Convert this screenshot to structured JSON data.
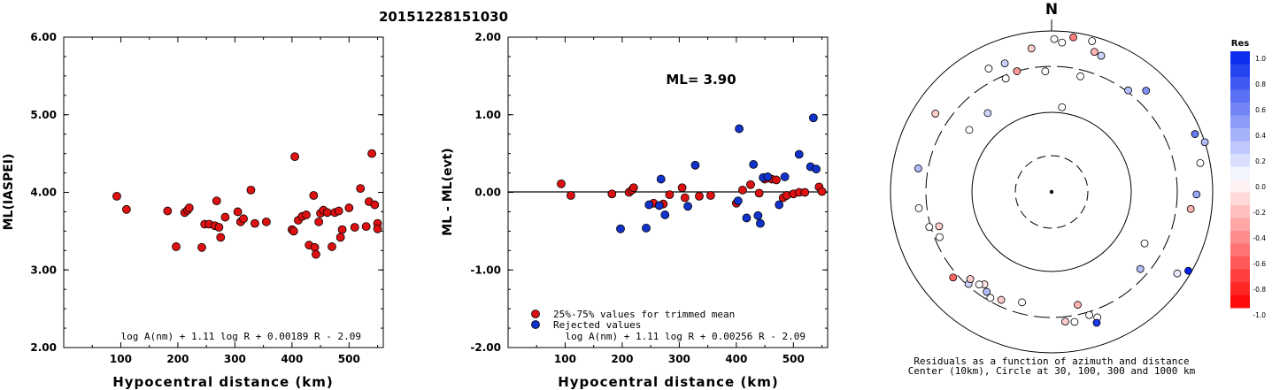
{
  "page_title": "20151228151030",
  "chart_data": [
    {
      "type": "scatter",
      "panel": "left",
      "ylabel": "ML(IASPEI)",
      "xlabel": "Hypocentral distance (km)",
      "xlim": [
        0,
        560
      ],
      "ylim": [
        2.0,
        6.0
      ],
      "xticks": [
        "100",
        "200",
        "300",
        "400",
        "500"
      ],
      "yticks": [
        "2.00",
        "3.00",
        "4.00",
        "5.00",
        "6.00"
      ],
      "formula": "log A(nm) + 1.11 log R + 0.00189 R - 2.09",
      "series": [
        {
          "color": "#dd1111",
          "x": [
            93,
            110,
            182,
            197,
            212,
            217,
            220,
            242,
            247,
            255,
            265,
            268,
            272,
            275,
            283,
            305,
            310,
            315,
            328,
            335,
            355,
            400,
            403,
            405,
            411,
            418,
            425,
            430,
            438,
            440,
            442,
            447,
            450,
            455,
            462,
            470,
            475,
            482,
            485,
            488,
            500,
            510,
            520,
            530,
            535,
            540,
            545,
            550,
            550
          ],
          "y": [
            3.95,
            3.78,
            3.76,
            3.3,
            3.74,
            3.77,
            3.8,
            3.29,
            3.59,
            3.59,
            3.57,
            3.89,
            3.55,
            3.42,
            3.68,
            3.75,
            3.62,
            3.66,
            4.03,
            3.6,
            3.62,
            3.52,
            3.5,
            4.46,
            3.64,
            3.69,
            3.71,
            3.32,
            3.96,
            3.29,
            3.2,
            3.62,
            3.73,
            3.77,
            3.74,
            3.3,
            3.74,
            3.76,
            3.42,
            3.52,
            3.8,
            3.55,
            4.05,
            3.56,
            3.88,
            4.5,
            3.84,
            3.6,
            3.53
          ]
        }
      ]
    },
    {
      "type": "scatter",
      "panel": "middle",
      "ylabel": "ML - ML(evt)",
      "xlabel": "Hypocentral distance (km)",
      "xlim": [
        0,
        560
      ],
      "ylim": [
        -2.0,
        2.0
      ],
      "xticks": [
        "100",
        "200",
        "300",
        "400",
        "500"
      ],
      "yticks": [
        "-2.00",
        "-1.00",
        "0.00",
        "1.00",
        "2.00"
      ],
      "annotation": "ML= 3.90",
      "legend": [
        "25%-75% values for trimmed mean",
        "Rejected values"
      ],
      "formula": "log A(nm) + 1.11 log R + 0.00256 R - 2.09",
      "series": [
        {
          "name": "25%-75% values for trimmed mean",
          "color": "#dd1111",
          "x": [
            93,
            110,
            182,
            212,
            217,
            220,
            255,
            272,
            283,
            305,
            310,
            335,
            355,
            400,
            411,
            425,
            440,
            450,
            462,
            470,
            482,
            488,
            500,
            510,
            520,
            545,
            550
          ],
          "y": [
            0.11,
            -0.04,
            -0.02,
            0.0,
            0.03,
            0.06,
            -0.14,
            -0.15,
            -0.03,
            0.06,
            -0.07,
            -0.05,
            -0.04,
            -0.14,
            0.03,
            0.1,
            -0.01,
            0.17,
            0.17,
            0.16,
            -0.07,
            -0.04,
            -0.02,
            0.0,
            0.0,
            0.07,
            0.01
          ]
        },
        {
          "name": "Rejected values",
          "color": "#1133cc",
          "x": [
            197,
            242,
            247,
            265,
            268,
            275,
            315,
            328,
            403,
            405,
            418,
            430,
            438,
            442,
            447,
            455,
            475,
            485,
            510,
            530,
            535,
            540
          ],
          "y": [
            -0.47,
            -0.46,
            -0.16,
            -0.17,
            0.17,
            -0.29,
            -0.18,
            0.35,
            -0.11,
            0.82,
            -0.33,
            0.36,
            -0.3,
            -0.4,
            0.19,
            0.2,
            -0.16,
            0.2,
            0.49,
            0.33,
            0.96,
            0.3
          ]
        }
      ]
    }
  ],
  "polar": {
    "north_label": "N",
    "caption_line1": "Residuals as a function of azimuth and distance",
    "caption_line2": "Center (10km), Circle at 30, 100, 300 and 1000 km",
    "points": [
      {
        "az": 1,
        "r": 0.95,
        "res": 0.0
      },
      {
        "az": 4,
        "r": 0.93,
        "res": 0.0
      },
      {
        "az": 8,
        "r": 0.97,
        "res": -0.5
      },
      {
        "az": 15,
        "r": 0.97,
        "res": 0.0
      },
      {
        "az": 17,
        "r": 0.91,
        "res": -0.3
      },
      {
        "az": 14,
        "r": 0.74,
        "res": 0.0
      },
      {
        "az": 7,
        "r": 0.53,
        "res": 0.0
      },
      {
        "az": 20,
        "r": 0.9,
        "res": 0.2
      },
      {
        "az": 37,
        "r": 0.79,
        "res": 0.3
      },
      {
        "az": 43,
        "r": 0.86,
        "res": 0.5
      },
      {
        "az": 68,
        "r": 0.96,
        "res": 0.6
      },
      {
        "az": 72,
        "r": 1.0,
        "res": 0.3
      },
      {
        "az": 79,
        "r": 0.94,
        "res": 0.0
      },
      {
        "az": 91,
        "r": 0.9,
        "res": 0.4
      },
      {
        "az": 97,
        "r": 0.87,
        "res": -0.3
      },
      {
        "az": 119,
        "r": 0.66,
        "res": 0.0
      },
      {
        "az": 123,
        "r": 0.93,
        "res": 0.1
      },
      {
        "az": 120,
        "r": 0.98,
        "res": 1.0
      },
      {
        "az": 131,
        "r": 0.73,
        "res": 0.3
      },
      {
        "az": 160,
        "r": 0.83,
        "res": 0.0
      },
      {
        "az": 163,
        "r": 0.8,
        "res": 0.0
      },
      {
        "az": 167,
        "r": 0.72,
        "res": -0.3
      },
      {
        "az": 161,
        "r": 0.86,
        "res": 0.9
      },
      {
        "az": 170,
        "r": 0.82,
        "res": 0.0
      },
      {
        "az": 174,
        "r": 0.81,
        "res": -0.2
      },
      {
        "az": 195,
        "r": 0.71,
        "res": 0.0
      },
      {
        "az": 205,
        "r": 0.74,
        "res": -0.2
      },
      {
        "az": 210,
        "r": 0.76,
        "res": 0.0
      },
      {
        "az": 213,
        "r": 0.74,
        "res": 0.3
      },
      {
        "az": 216,
        "r": 0.71,
        "res": -0.1
      },
      {
        "az": 218,
        "r": 0.73,
        "res": 0.0
      },
      {
        "az": 222,
        "r": 0.77,
        "res": 0.2
      },
      {
        "az": 223,
        "r": 0.74,
        "res": -0.2
      },
      {
        "az": 229,
        "r": 0.81,
        "res": -0.6
      },
      {
        "az": 248,
        "r": 0.75,
        "res": 0.0
      },
      {
        "az": 253,
        "r": 0.73,
        "res": -0.2
      },
      {
        "az": 254,
        "r": 0.79,
        "res": 0.0
      },
      {
        "az": 263,
        "r": 0.83,
        "res": 0.0
      },
      {
        "az": 280,
        "r": 0.84,
        "res": 0.3
      },
      {
        "az": 307,
        "r": 0.64,
        "res": 0.0
      },
      {
        "az": 304,
        "r": 0.87,
        "res": -0.2
      },
      {
        "az": 321,
        "r": 0.63,
        "res": 0.2
      },
      {
        "az": 333,
        "r": 0.86,
        "res": 0.0
      },
      {
        "az": 338,
        "r": 0.76,
        "res": 0.0
      },
      {
        "az": 344,
        "r": 0.78,
        "res": -0.4
      },
      {
        "az": 352,
        "r": 0.9,
        "res": -0.2
      },
      {
        "az": 357,
        "r": 0.75,
        "res": 0.0
      },
      {
        "az": 340,
        "r": 0.85,
        "res": 0.2
      }
    ]
  },
  "colorbar": {
    "title": "Res",
    "labels": [
      "1.0",
      "0.8",
      "0.6",
      "0.4",
      "0.2",
      "0.0",
      "-0.2",
      "-0.4",
      "-0.6",
      "-0.8",
      "-1.0"
    ],
    "positive_color": "#0022ee",
    "negative_color": "#ff0000"
  }
}
